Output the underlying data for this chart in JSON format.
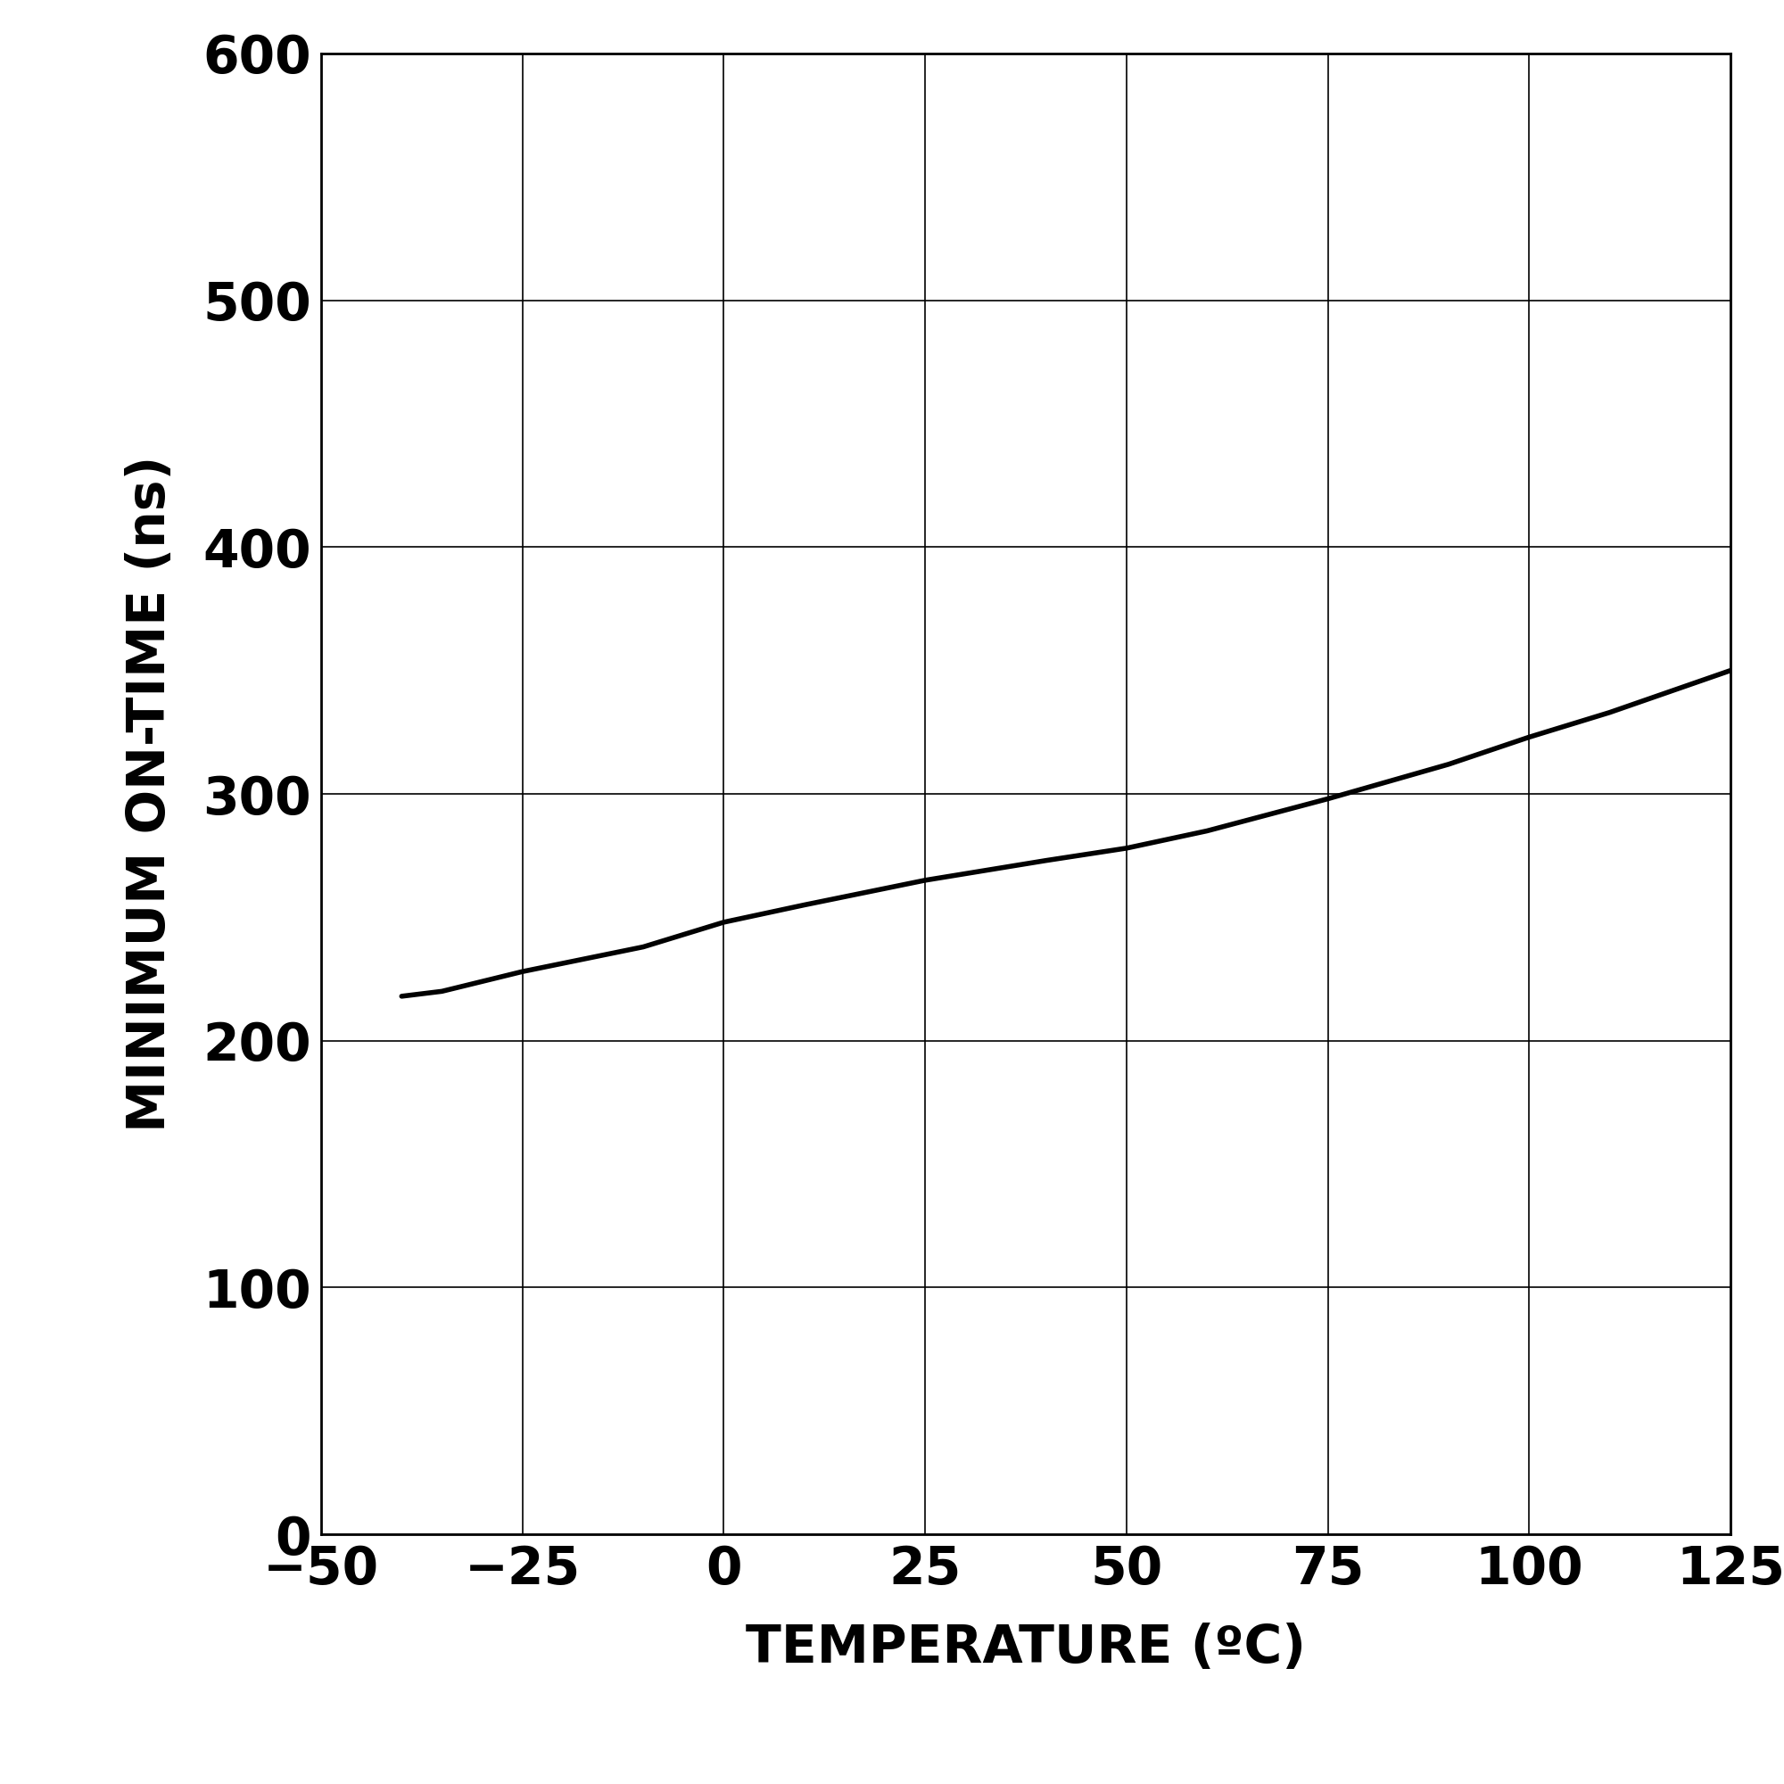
{
  "xlabel": "TEMPERATURE (ºC)",
  "ylabel": "MINIMUM ON-TIME (ns)",
  "xlim": [
    -50,
    125
  ],
  "ylim": [
    0,
    600
  ],
  "xticks": [
    -50,
    -25,
    0,
    25,
    50,
    75,
    100,
    125
  ],
  "yticks": [
    0,
    100,
    200,
    300,
    400,
    500,
    600
  ],
  "x_data": [
    -40,
    -35,
    -25,
    -10,
    0,
    10,
    25,
    40,
    50,
    60,
    75,
    90,
    100,
    110,
    125
  ],
  "y_data": [
    218,
    220,
    228,
    238,
    248,
    255,
    265,
    273,
    278,
    285,
    298,
    312,
    323,
    333,
    350
  ],
  "line_color": "#000000",
  "line_width": 4.0,
  "grid_color": "#000000",
  "grid_linewidth": 1.2,
  "background_color": "#ffffff",
  "xlabel_fontsize": 42,
  "ylabel_fontsize": 42,
  "tick_fontsize": 42,
  "spine_linewidth": 2.0
}
